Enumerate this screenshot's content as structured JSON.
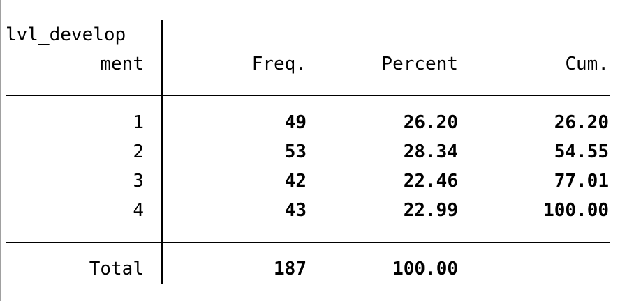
{
  "table": {
    "var_header_line1": "lvl_develop",
    "var_header_line2": "ment",
    "columns": {
      "freq": "Freq.",
      "percent": "Percent",
      "cum": "Cum."
    },
    "rows": [
      {
        "value": "1",
        "freq": "49",
        "percent": "26.20",
        "cum": "26.20"
      },
      {
        "value": "2",
        "freq": "53",
        "percent": "28.34",
        "cum": "54.55"
      },
      {
        "value": "3",
        "freq": "42",
        "percent": "22.46",
        "cum": "77.01"
      },
      {
        "value": "4",
        "freq": "43",
        "percent": "22.99",
        "cum": "100.00"
      }
    ],
    "total": {
      "label": "Total",
      "freq": "187",
      "percent": "100.00"
    }
  }
}
